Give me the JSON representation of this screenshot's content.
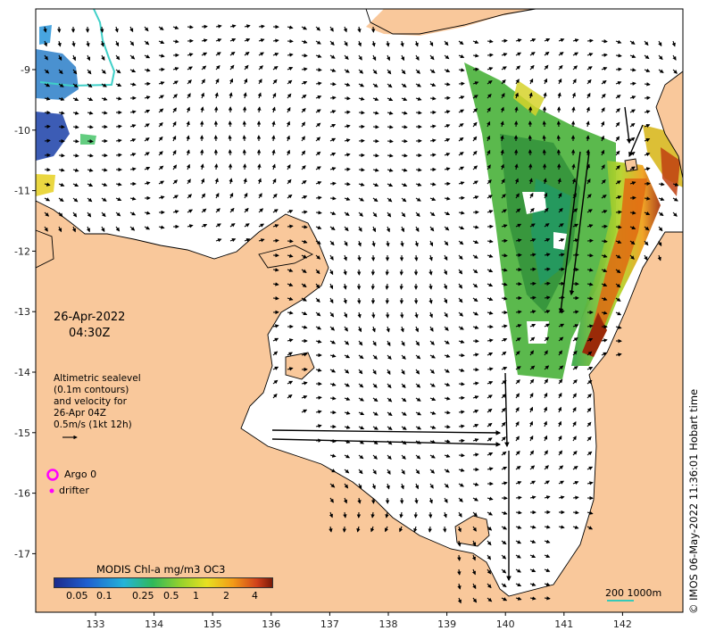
{
  "map": {
    "date": "26-Apr-2022",
    "time": "04:30Z",
    "legend_lines": [
      "Altimetric sealevel",
      "(0.1m contours)",
      "and velocity for",
      "26-Apr 04Z",
      "0.5m/s (1kt 12h)"
    ],
    "argo_label": "Argo 0",
    "drifter_label": "drifter",
    "colorbar_title": "MODIS Chl-a mg/m3 OC3",
    "colorbar_ticks": [
      "0.05",
      "0.1",
      "0.25",
      "0.5",
      "1",
      "2",
      "4"
    ],
    "scale_label": "200  1000m",
    "credit": "© IMOS 06-May-2022 11:36:01 Hobart time",
    "x_ticks": [
      "133",
      "134",
      "135",
      "136",
      "137",
      "138",
      "139",
      "140",
      "141",
      "142"
    ],
    "y_ticks": [
      "-9",
      "-10",
      "-11",
      "-12",
      "-13",
      "-14",
      "-15",
      "-16",
      "-17"
    ],
    "colors": {
      "land": "#f9c89b",
      "sea": "#ffffff",
      "argo": "#ff00ff",
      "drifter": "#ff00ff",
      "isobath": "#3fd0c8",
      "chl_low": "#2a7a2a",
      "chl_mid": "#7ccc2c",
      "chl_high": "#e07a10",
      "chl_max": "#8b1a00"
    },
    "icons": {
      "argo": "magenta-ring",
      "drifter": "magenta-dot",
      "velocity": "arrow"
    }
  }
}
